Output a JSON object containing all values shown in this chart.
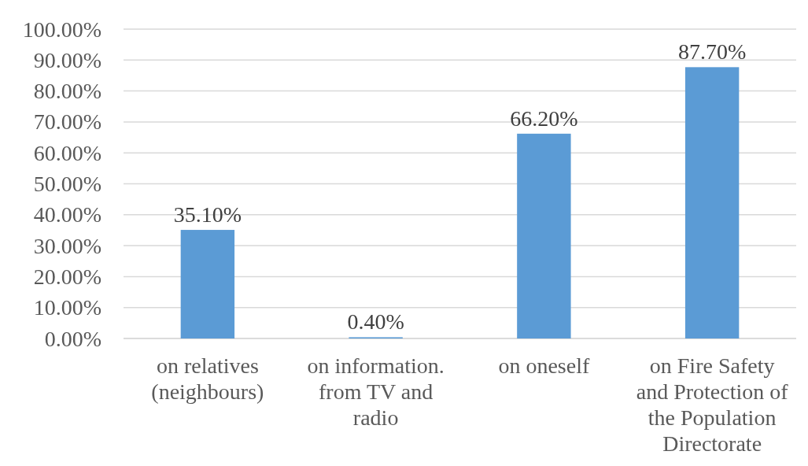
{
  "chart_data": {
    "type": "bar",
    "categories": [
      "on relatives (neighbours)",
      "on information. from TV and radio",
      "on oneself",
      "on Fire Safety and Protection of the Population Directorate"
    ],
    "values": [
      35.1,
      0.4,
      66.2,
      87.7
    ],
    "color": "#5b9bd5",
    "value_labels": [
      "35.10%",
      "0.40%",
      "66.20%",
      "87.70%"
    ],
    "ylim": [
      0,
      100
    ],
    "yticks": [
      {
        "value": 0,
        "label": "0.00%"
      },
      {
        "value": 10,
        "label": "10.00%"
      },
      {
        "value": 20,
        "label": "20.00%"
      },
      {
        "value": 30,
        "label": "30.00%"
      },
      {
        "value": 40,
        "label": "40.00%"
      },
      {
        "value": 50,
        "label": "50.00%"
      },
      {
        "value": 60,
        "label": "60.00%"
      },
      {
        "value": 70,
        "label": "70.00%"
      },
      {
        "value": 80,
        "label": "80.00%"
      },
      {
        "value": 90,
        "label": "90.00%"
      },
      {
        "value": 100,
        "label": "100.00%"
      }
    ],
    "grid": "y"
  }
}
